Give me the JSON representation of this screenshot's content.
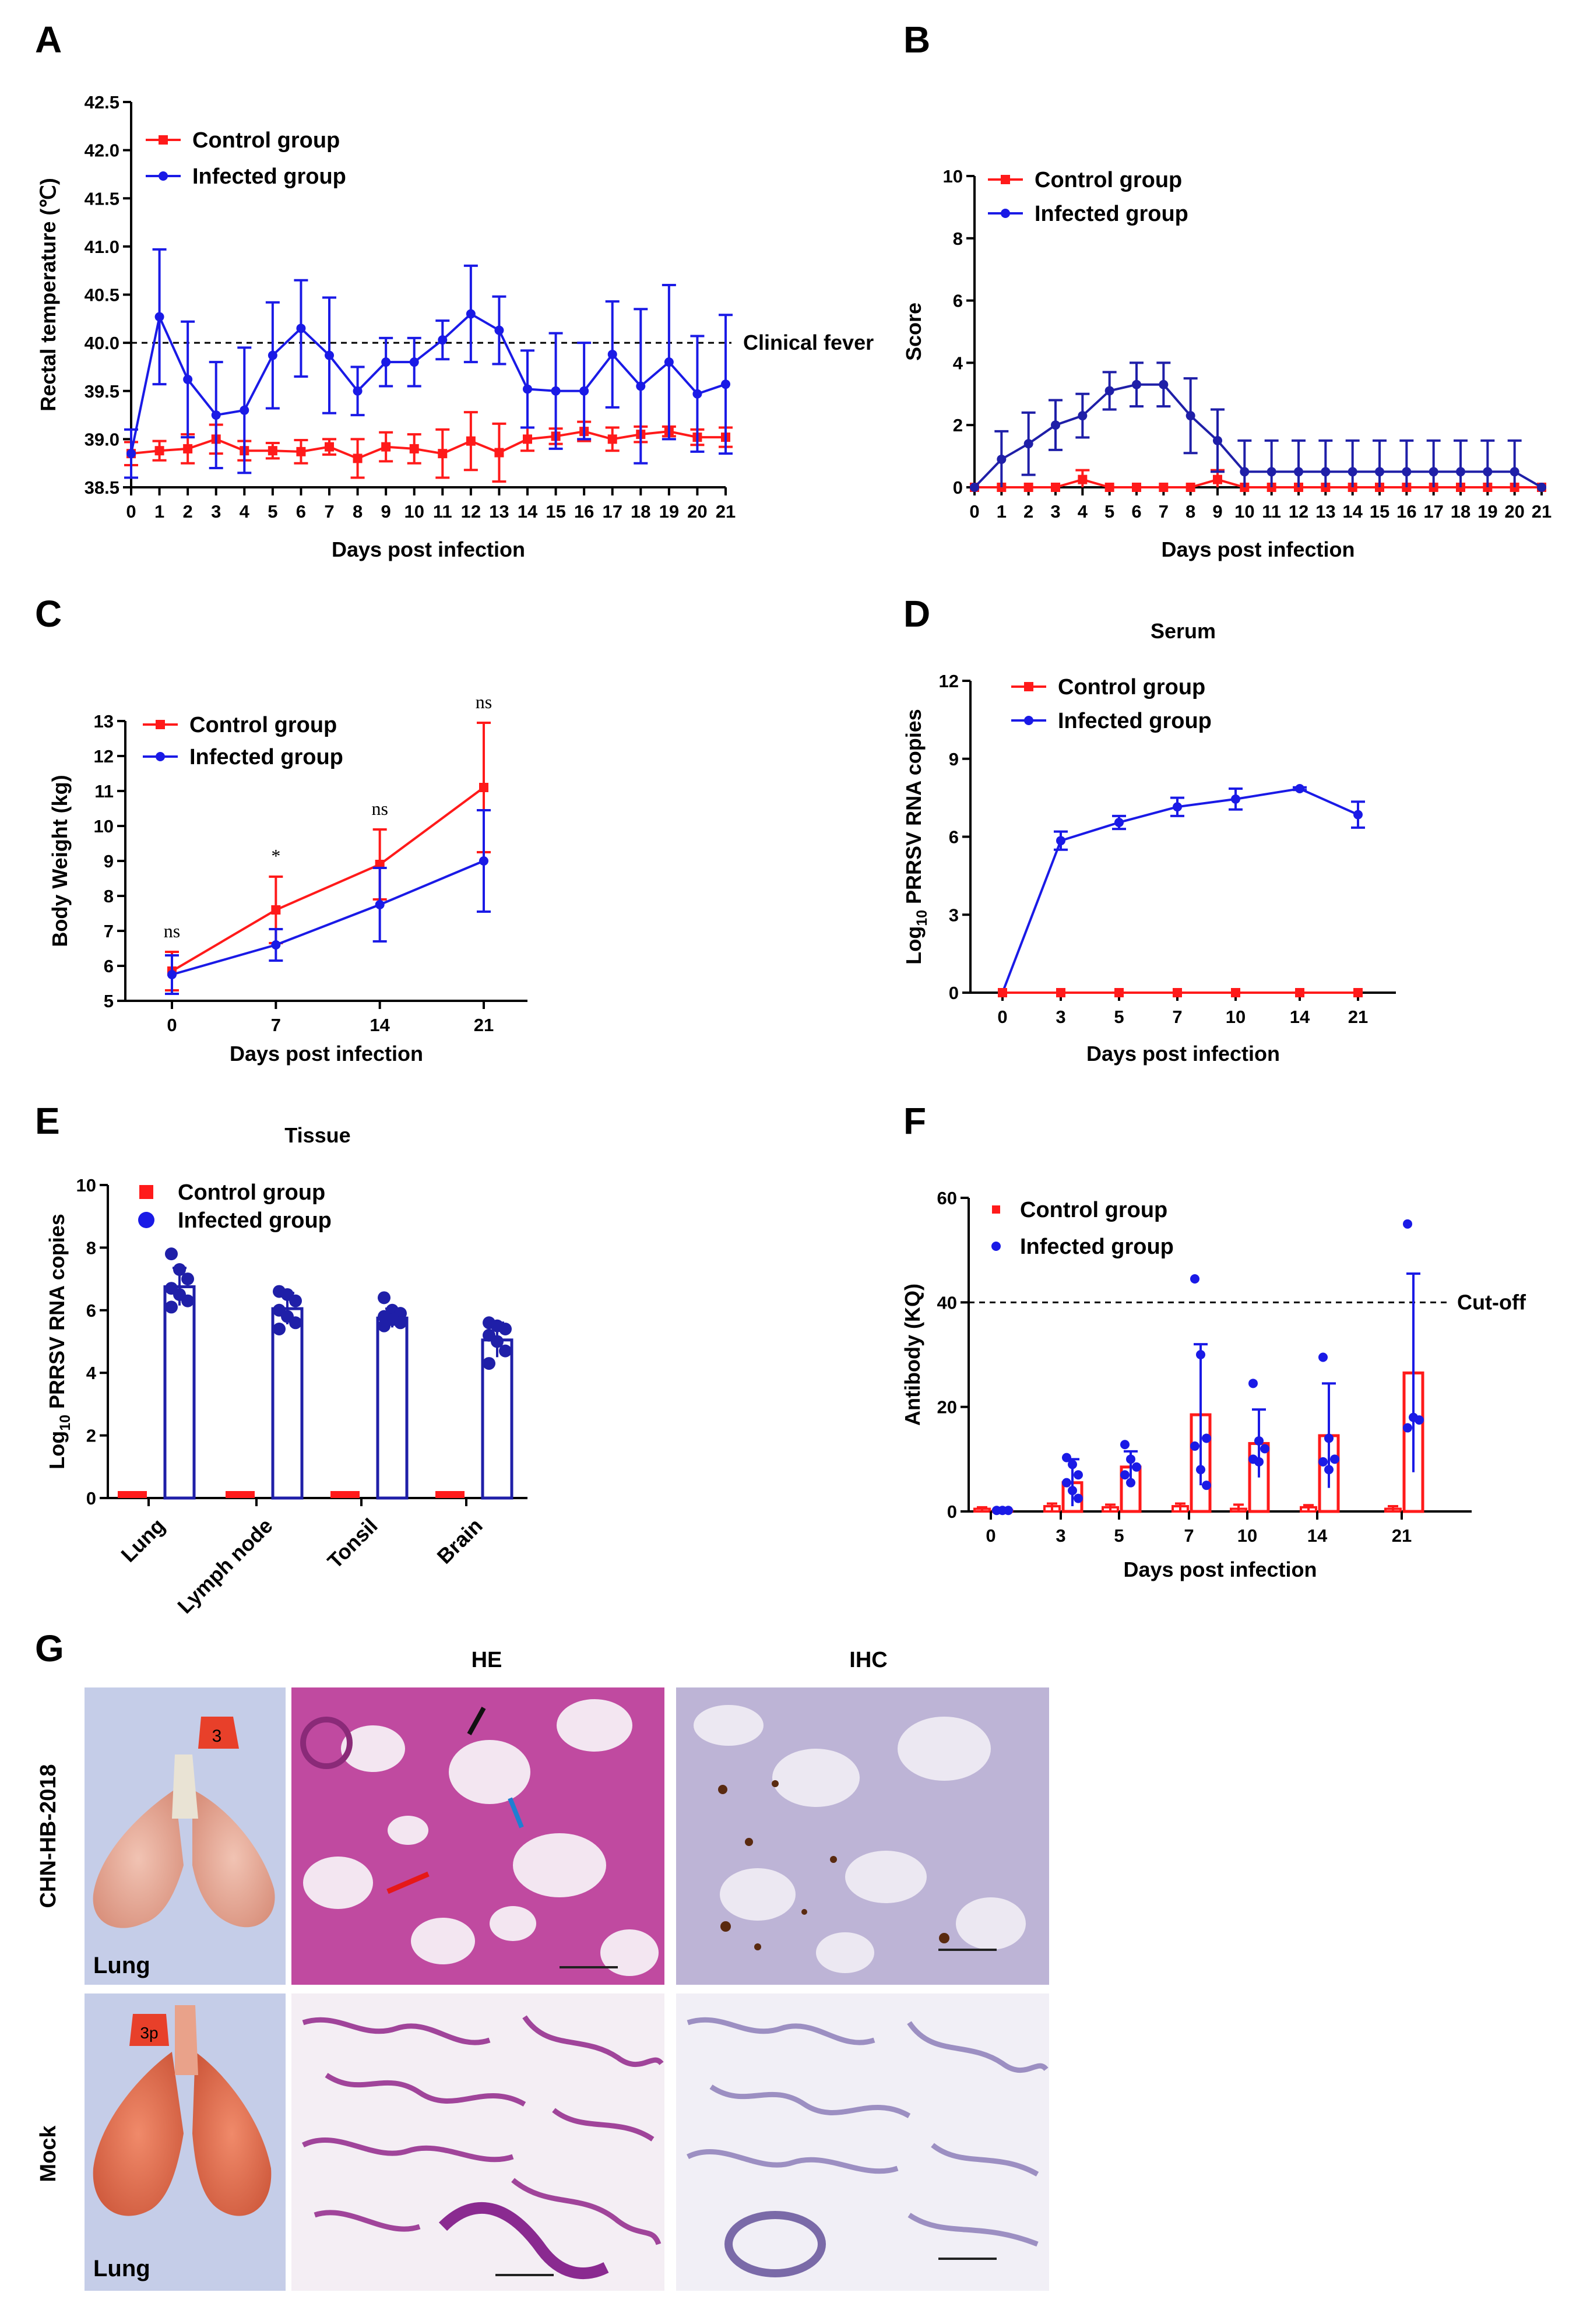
{
  "colors": {
    "control": "#ff1a1a",
    "infected": "#1a1ae6",
    "infected_dark": "#1f1fa8"
  },
  "panels": {
    "A": "A",
    "B": "B",
    "C": "C",
    "D": "D",
    "E": "E",
    "F": "F",
    "G": "G"
  },
  "chart_data": [
    {
      "id": "A",
      "type": "line",
      "xlabel": "Days post infection",
      "ylabel": "Rectal temperature (℃)",
      "xlim": [
        0,
        21
      ],
      "ylim": [
        38.5,
        42.5
      ],
      "yticks": [
        "38.5",
        "39.0",
        "39.5",
        "40.0",
        "40.5",
        "41.0",
        "41.5",
        "42.0",
        "42.5"
      ],
      "xticks": [
        "0",
        "1",
        "2",
        "3",
        "4",
        "5",
        "6",
        "7",
        "8",
        "9",
        "10",
        "11",
        "12",
        "13",
        "14",
        "15",
        "16",
        "17",
        "18",
        "19",
        "20",
        "21"
      ],
      "reference_line": {
        "y": 40.0,
        "label": "Clinical fever"
      },
      "x": [
        0,
        1,
        2,
        3,
        4,
        5,
        6,
        7,
        8,
        9,
        10,
        11,
        12,
        13,
        14,
        15,
        16,
        17,
        18,
        19,
        20,
        21
      ],
      "series": [
        {
          "name": "Control group",
          "values": [
            38.85,
            38.88,
            38.9,
            39.0,
            38.88,
            38.88,
            38.87,
            38.92,
            38.8,
            38.92,
            38.9,
            38.85,
            38.98,
            38.86,
            39.0,
            39.03,
            39.08,
            39.0,
            39.05,
            39.08,
            39.02,
            39.02
          ],
          "errors": [
            0.12,
            0.1,
            0.15,
            0.15,
            0.1,
            0.08,
            0.12,
            0.08,
            0.2,
            0.15,
            0.15,
            0.25,
            0.3,
            0.3,
            0.12,
            0.08,
            0.1,
            0.12,
            0.08,
            0.05,
            0.08,
            0.1
          ]
        },
        {
          "name": "Infected group",
          "values": [
            38.85,
            40.27,
            39.62,
            39.25,
            39.3,
            39.87,
            40.15,
            39.87,
            39.5,
            39.8,
            39.8,
            40.03,
            40.3,
            40.13,
            39.52,
            39.5,
            39.5,
            39.88,
            39.55,
            39.8,
            39.47,
            39.57
          ],
          "errors": [
            0.25,
            0.7,
            0.6,
            0.55,
            0.65,
            0.55,
            0.5,
            0.6,
            0.25,
            0.25,
            0.25,
            0.2,
            0.5,
            0.35,
            0.4,
            0.6,
            0.5,
            0.55,
            0.8,
            0.8,
            0.6,
            0.72
          ]
        }
      ]
    },
    {
      "id": "B",
      "type": "line",
      "xlabel": "Days post infection",
      "ylabel": "Score",
      "xlim": [
        0,
        21
      ],
      "ylim": [
        0,
        10
      ],
      "yticks": [
        "0",
        "2",
        "4",
        "6",
        "8",
        "10"
      ],
      "xticks": [
        "0",
        "1",
        "2",
        "3",
        "4",
        "5",
        "6",
        "7",
        "8",
        "9",
        "10",
        "11",
        "12",
        "13",
        "14",
        "15",
        "16",
        "17",
        "18",
        "19",
        "20",
        "21"
      ],
      "x": [
        0,
        1,
        2,
        3,
        4,
        5,
        6,
        7,
        8,
        9,
        10,
        11,
        12,
        13,
        14,
        15,
        16,
        17,
        18,
        19,
        20,
        21
      ],
      "series": [
        {
          "name": "Control group",
          "values": [
            0,
            0,
            0,
            0,
            0.25,
            0,
            0,
            0,
            0,
            0.25,
            0,
            0,
            0,
            0,
            0,
            0,
            0,
            0,
            0,
            0,
            0,
            0
          ],
          "errors": [
            0,
            0,
            0,
            0,
            0.3,
            0,
            0,
            0,
            0,
            0.3,
            0,
            0,
            0,
            0,
            0,
            0,
            0,
            0,
            0,
            0,
            0,
            0
          ]
        },
        {
          "name": "Infected group",
          "values": [
            0,
            0.9,
            1.4,
            2.0,
            2.3,
            3.1,
            3.3,
            3.3,
            2.3,
            1.5,
            0.5,
            0.5,
            0.5,
            0.5,
            0.5,
            0.5,
            0.5,
            0.5,
            0.5,
            0.5,
            0.5,
            0
          ],
          "errors": [
            0,
            0.9,
            1.0,
            0.8,
            0.7,
            0.6,
            0.7,
            0.7,
            1.2,
            1.0,
            1.0,
            1.0,
            1.0,
            1.0,
            1.0,
            1.0,
            1.0,
            1.0,
            1.0,
            1.0,
            1.0,
            0
          ]
        }
      ]
    },
    {
      "id": "C",
      "type": "line",
      "xlabel": "Days post infection",
      "ylabel": "Body Weight (kg)",
      "ylim": [
        5,
        13
      ],
      "yticks": [
        "5",
        "6",
        "7",
        "8",
        "9",
        "10",
        "11",
        "12",
        "13"
      ],
      "xticks": [
        "0",
        "7",
        "14",
        "21"
      ],
      "x": [
        0,
        7,
        14,
        21
      ],
      "annotations": [
        "ns",
        "*",
        "ns",
        "ns"
      ],
      "series": [
        {
          "name": "Control group",
          "values": [
            5.85,
            7.6,
            8.9,
            11.1
          ],
          "errors": [
            0.55,
            0.95,
            1.0,
            1.85
          ]
        },
        {
          "name": "Infected group",
          "values": [
            5.75,
            6.6,
            7.75,
            9.0
          ],
          "errors": [
            0.55,
            0.45,
            1.05,
            1.45
          ]
        }
      ]
    },
    {
      "id": "D",
      "type": "line",
      "title": "Serum",
      "xlabel": "Days post infection",
      "ylabel": "Log10 PRRSV RNA copies",
      "ylim": [
        0,
        12
      ],
      "yticks": [
        "0",
        "3",
        "6",
        "9",
        "12"
      ],
      "xticks": [
        "0",
        "3",
        "5",
        "7",
        "10",
        "14",
        "21"
      ],
      "x": [
        0,
        3,
        5,
        7,
        10,
        14,
        21
      ],
      "series": [
        {
          "name": "Control group",
          "values": [
            0,
            0,
            0,
            0,
            0,
            0,
            0
          ],
          "errors": [
            0,
            0,
            0,
            0,
            0,
            0,
            0
          ]
        },
        {
          "name": "Infected  group",
          "values": [
            0,
            5.85,
            6.55,
            7.15,
            7.45,
            7.85,
            6.85
          ],
          "errors": [
            0,
            0.35,
            0.25,
            0.35,
            0.4,
            0.05,
            0.5
          ]
        }
      ]
    },
    {
      "id": "E",
      "type": "bar",
      "title": "Tissue",
      "ylabel": "Log10 PRRSV RNA copies",
      "ylim": [
        0,
        10
      ],
      "yticks": [
        "0",
        "2",
        "4",
        "6",
        "8",
        "10"
      ],
      "categories": [
        "Lung",
        "Lymph node",
        "Tonsil",
        "Brain"
      ],
      "series": [
        {
          "name": "Control group",
          "values": [
            0,
            0,
            0,
            0
          ]
        },
        {
          "name": "Infected group",
          "values": [
            6.75,
            6.05,
            5.75,
            5.05
          ],
          "errors": [
            0.6,
            0.5,
            0.3,
            0.55
          ],
          "points": [
            [
              7.8,
              7.3,
              7.0,
              6.7,
              6.5,
              6.3,
              6.1
            ],
            [
              6.6,
              6.5,
              6.3,
              6.0,
              5.8,
              5.6,
              5.4
            ],
            [
              6.4,
              6.0,
              5.9,
              5.8,
              5.7,
              5.6,
              5.5
            ],
            [
              5.6,
              5.5,
              5.4,
              5.2,
              5.0,
              4.7,
              4.3
            ]
          ]
        }
      ]
    },
    {
      "id": "F",
      "type": "bar",
      "xlabel": "Days post infection",
      "ylabel": "Antibody (KQ)",
      "ylim": [
        0,
        60
      ],
      "yticks": [
        "0",
        "20",
        "40",
        "60"
      ],
      "categories": [
        "0",
        "3",
        "5",
        "7",
        "10",
        "14",
        "21"
      ],
      "reference_line": {
        "y": 40,
        "label": "Cut-off"
      },
      "series": [
        {
          "name": "Control group",
          "values": [
            0.5,
            1.0,
            0.8,
            1.0,
            0.5,
            0.8,
            0.5
          ],
          "errors": [
            0.3,
            0.5,
            0.5,
            0.5,
            0.8,
            0.4,
            0.5
          ]
        },
        {
          "name": "Infected group",
          "values": [
            0.2,
            5.5,
            8.5,
            18.5,
            13.0,
            14.5,
            26.5
          ],
          "errors": [
            0.3,
            4.5,
            3.0,
            13.5,
            6.5,
            10.0,
            19.0
          ],
          "points": [
            [
              0.2,
              0.2,
              0.2
            ],
            [
              10.3,
              9.0,
              7.0,
              5.5,
              4.0,
              2.5
            ],
            [
              12.8,
              10.0,
              8.5,
              7.0,
              5.5
            ],
            [
              44.5,
              30.0,
              14.0,
              12.5,
              8.0,
              5.0
            ],
            [
              24.5,
              13.5,
              12.0,
              10.0,
              9.5
            ],
            [
              29.5,
              14.0,
              10.0,
              9.5,
              8.0
            ],
            [
              55.0,
              18.0,
              17.5,
              16.0
            ]
          ]
        }
      ]
    }
  ],
  "panel_g": {
    "hdr_he": "HE",
    "hdr_ihc": "IHC",
    "row1": "CHN-HB-2018",
    "row2": "Mock",
    "lung1": "Lung",
    "lung2": "Lung",
    "tag1": "3",
    "tag2": "3p"
  }
}
